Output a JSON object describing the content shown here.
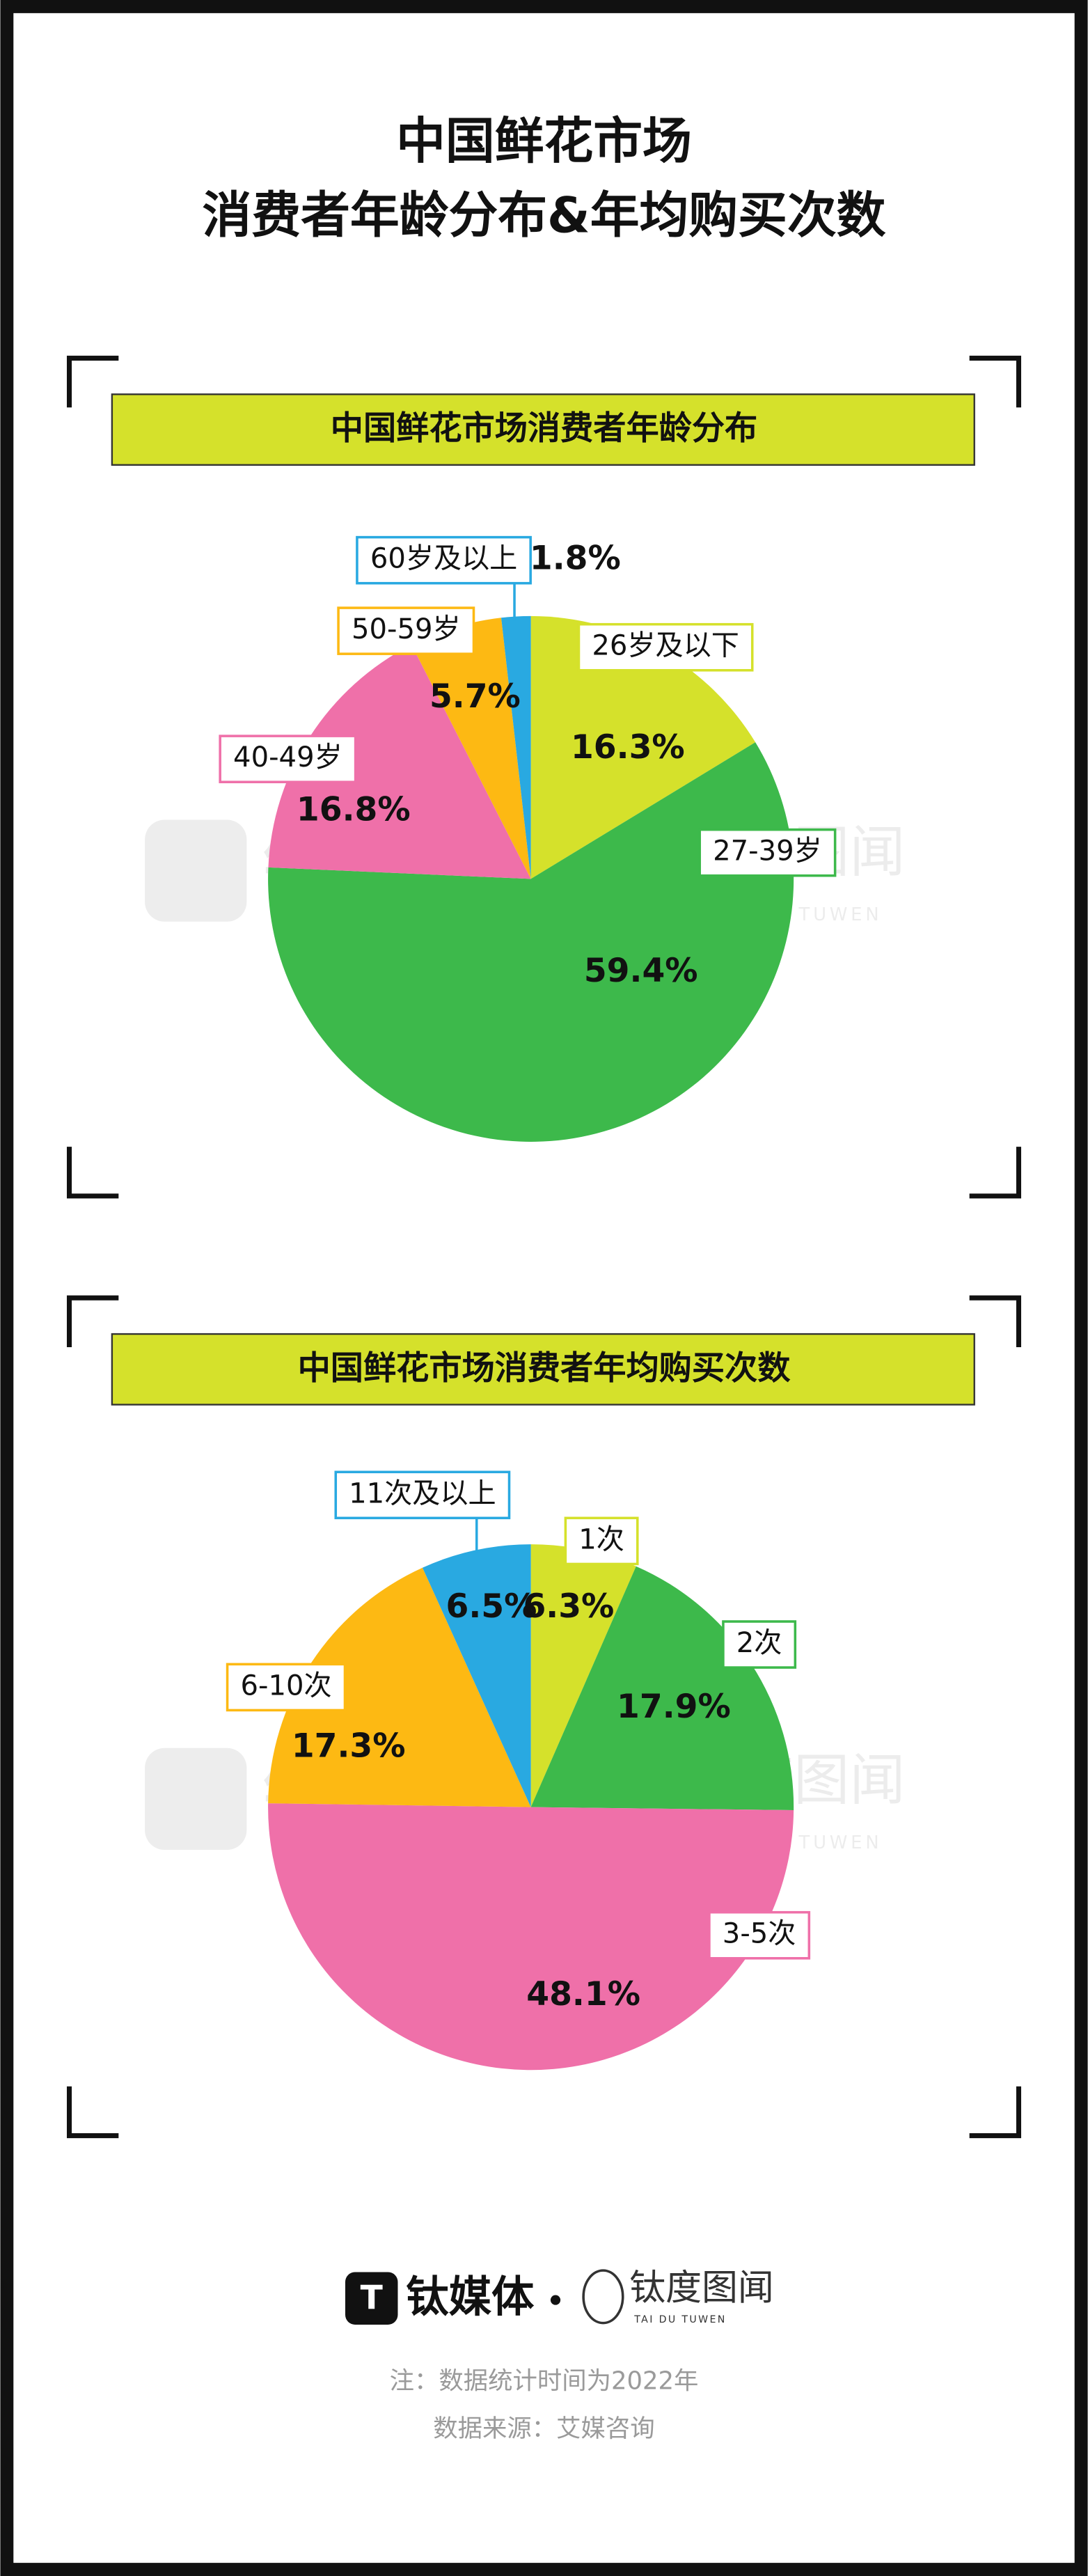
{
  "title": [
    "中国鲜花市场",
    "消费者年龄分布&年均购买次数"
  ],
  "chart_data": [
    {
      "type": "pie",
      "title": "中国鲜花市场消费者年龄分布",
      "categories": [
        "26岁及以下",
        "27-39岁",
        "40-49岁",
        "50-59岁",
        "60岁及以上"
      ],
      "values": [
        16.3,
        59.4,
        16.8,
        5.7,
        1.8
      ],
      "value_labels": [
        "16.3%",
        "59.4%",
        "16.8%",
        "5.7%",
        "1.8%"
      ],
      "colors": [
        "#d5e12b",
        "#3db94b",
        "#ef70a9",
        "#fdb913",
        "#29a9e1"
      ]
    },
    {
      "type": "pie",
      "title": "中国鲜花市场消费者年均购买次数",
      "categories": [
        "1次",
        "2次",
        "3-5次",
        "6-10次",
        "11次及以上"
      ],
      "values": [
        6.3,
        17.9,
        48.1,
        17.3,
        6.5
      ],
      "value_labels": [
        "6.3%",
        "17.9%",
        "48.1%",
        "17.3%",
        "6.5%"
      ],
      "colors": [
        "#d5e12b",
        "#3db94b",
        "#ef70a9",
        "#fdb913",
        "#29a9e1"
      ]
    }
  ],
  "brand": "钛媒体",
  "brand2": "钛度图闻",
  "brand2_sub": "TAI DU TUWEN",
  "notes": [
    "注：数据统计时间为2022年",
    "数据来源：艾媒咨询"
  ]
}
